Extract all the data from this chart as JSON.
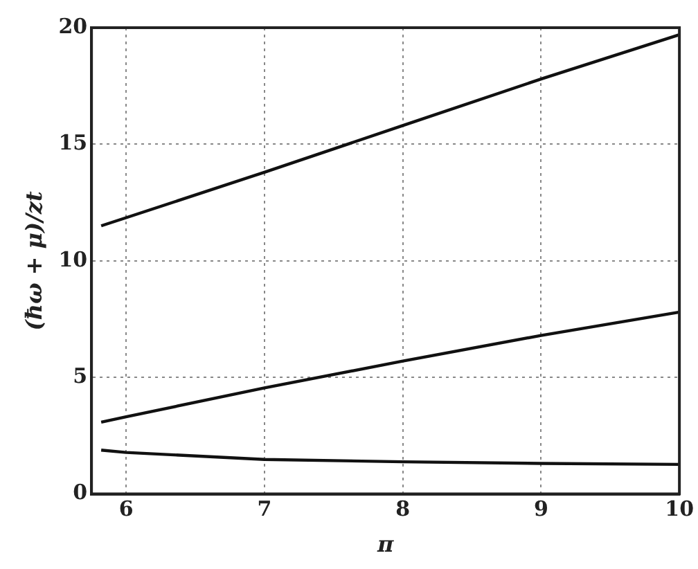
{
  "chart_data": {
    "type": "line",
    "xlabel": "π",
    "ylabel": "(ħω + μ)/zt",
    "series": [
      {
        "color": "#111111",
        "x": [
          5.82,
          6,
          7,
          8,
          9,
          10
        ],
        "values": [
          11.5,
          11.85,
          13.8,
          15.8,
          17.8,
          19.7
        ]
      },
      {
        "color": "#111111",
        "x": [
          5.82,
          6,
          7,
          8,
          9,
          10
        ],
        "values": [
          3.08,
          3.31,
          4.55,
          5.7,
          6.8,
          7.8
        ]
      },
      {
        "color": "#111111",
        "x": [
          5.82,
          6,
          7,
          8,
          9,
          10
        ],
        "values": [
          1.88,
          1.78,
          1.48,
          1.38,
          1.31,
          1.27
        ]
      }
    ],
    "xlim": [
      5.75,
      10
    ],
    "xticks": [
      6,
      7,
      8,
      9,
      10
    ],
    "ylim": [
      0,
      20
    ],
    "yticks": [
      0,
      5,
      10,
      15,
      20
    ],
    "grid": true,
    "legend": false,
    "marker": "none",
    "line_style": "solid"
  }
}
